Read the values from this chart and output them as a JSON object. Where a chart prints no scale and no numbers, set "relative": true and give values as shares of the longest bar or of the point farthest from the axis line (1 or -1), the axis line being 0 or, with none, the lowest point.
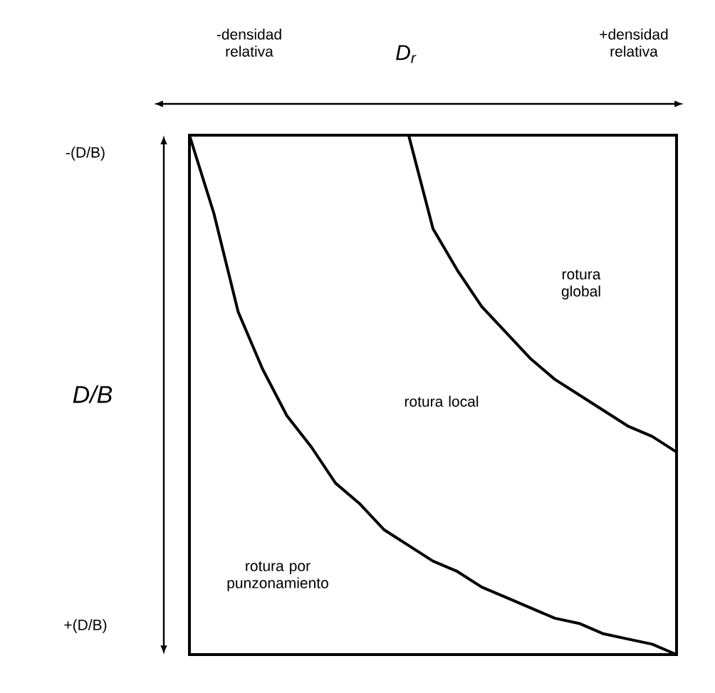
{
  "chart_data": {
    "type": "line",
    "relative": true,
    "xlabel": "D$_{r}$",
    "ylabel": "D/B",
    "categories": [
      null,
      null,
      null,
      null,
      null,
      null,
      null,
      null,
      null,
      null,
      null,
      null,
      null,
      null,
      null,
      null,
      null,
      null,
      null,
      null,
      null
    ],
    "series": [
      {
        "color": "#000000",
        "values": [
          1.0,
          0.85,
          0.66,
          0.55,
          0.46,
          0.4,
          0.33,
          0.29,
          0.24,
          0.21,
          0.18,
          0.16,
          0.13,
          0.11,
          0.09,
          0.07,
          0.06,
          0.04,
          0.03,
          0.02,
          0.0
        ]
      },
      {
        "color": "#000000",
        "values": [
          null,
          null,
          null,
          null,
          null,
          null,
          null,
          null,
          null,
          1.0,
          0.82,
          0.74,
          0.67,
          0.62,
          0.57,
          0.53,
          0.5,
          0.47,
          0.44,
          0.42,
          0.39
        ]
      }
    ],
    "annotations": [
      "rotura global",
      "rotura local",
      "rotura por punzonamiento",
      "-densidad relativa",
      "+densidad relativa",
      "-(D/B)",
      "+(D/B)"
    ]
  }
}
